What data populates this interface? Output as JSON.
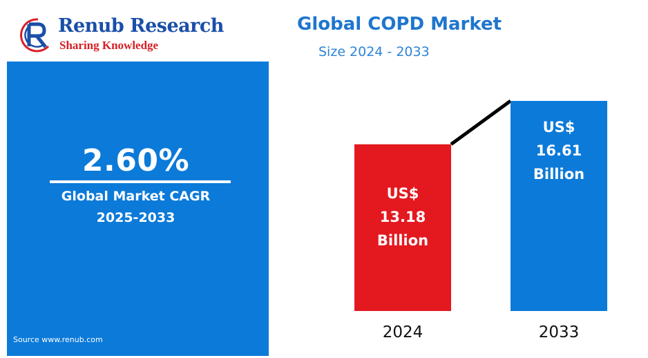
{
  "logo": {
    "name": "Renub Research",
    "tagline": "Sharing Knowledge",
    "colors": {
      "navy": "#1a4fa8",
      "red": "#d61f26"
    }
  },
  "summary": {
    "cagr_value": "2.60%",
    "cagr_label": "Global Market CAGR",
    "cagr_period": "2025-2033",
    "source": "Source  www.renub.com",
    "panel_color": "#0c7ad8"
  },
  "chart_data": {
    "type": "bar",
    "title": "Global COPD Market",
    "subtitle": "Size 2024 - 2033",
    "categories": [
      "2024",
      "2033"
    ],
    "values": [
      13.18,
      16.61
    ],
    "unit_prefix": "US$",
    "unit_suffix": "Billion",
    "bar_labels": [
      [
        "US$",
        "13.18",
        "Billion"
      ],
      [
        "US$",
        "16.61",
        "Billion"
      ]
    ],
    "bar_colors": [
      "#e3191f",
      "#0c7ad8"
    ],
    "connector": true,
    "grid": false,
    "legend": "none",
    "ylim": [
      0,
      16.61
    ]
  }
}
